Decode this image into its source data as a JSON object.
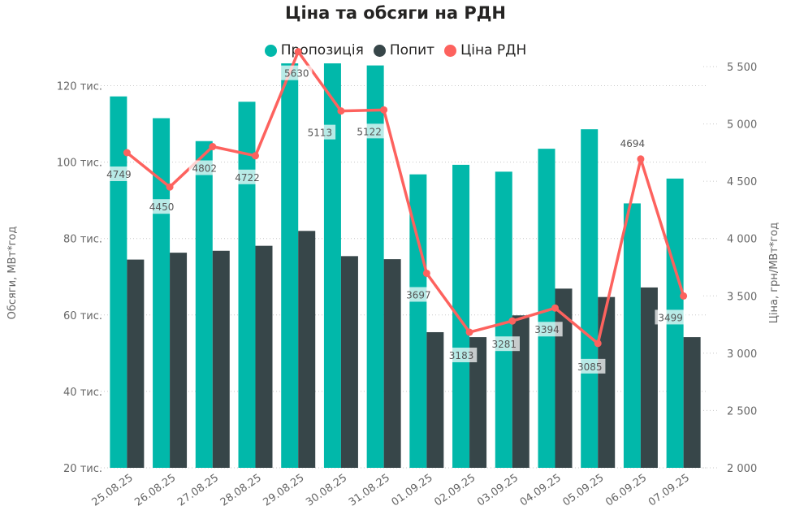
{
  "chart_data": {
    "type": "bar",
    "title": "Ціна та обсяги на РДН",
    "categories": [
      "25.08.25",
      "26.08.25",
      "27.08.25",
      "28.08.25",
      "29.08.25",
      "30.08.25",
      "31.08.25",
      "01.09.25",
      "02.09.25",
      "03.09.25",
      "04.09.25",
      "05.09.25",
      "06.09.25",
      "07.09.25"
    ],
    "series": [
      {
        "name": "Пропозиція",
        "type": "bar",
        "axis": "left",
        "color": "#01B8AA",
        "values": [
          117200,
          111500,
          105500,
          115800,
          132000,
          126000,
          125300,
          96800,
          99300,
          97500,
          103500,
          108600,
          89200,
          95700
        ]
      },
      {
        "name": "Попит",
        "type": "bar",
        "axis": "left",
        "color": "#374649",
        "values": [
          74500,
          76300,
          76800,
          78100,
          82000,
          75400,
          74600,
          55500,
          54200,
          59900,
          66900,
          64700,
          67200,
          54200
        ]
      },
      {
        "name": "Ціна РДН",
        "type": "line",
        "axis": "right",
        "color": "#FD625E",
        "values": [
          4749,
          4450,
          4802,
          4722,
          5630,
          5113,
          5122,
          3697,
          3183,
          3281,
          3394,
          3085,
          4694,
          3499
        ]
      }
    ],
    "y_left": {
      "label": "Обсяги, МВт*год",
      "ylim": [
        20000,
        125000
      ],
      "ticks": [
        20000,
        40000,
        60000,
        80000,
        100000,
        120000
      ],
      "tick_labels": [
        "20 тис.",
        "40 тис.",
        "60 тис.",
        "80 тис.",
        "100 тис.",
        "120 тис."
      ]
    },
    "y_right": {
      "label": "Ціна, грн/МВт*год",
      "ylim": [
        2000,
        5500
      ],
      "ticks": [
        2000,
        2500,
        3000,
        3500,
        4000,
        4500,
        5000,
        5500
      ],
      "tick_labels": [
        "2 000",
        "2 500",
        "3 000",
        "3 500",
        "4 000",
        "4 500",
        "5 000",
        "5 500"
      ]
    },
    "price_labels": [
      "4749",
      "4450",
      "4802",
      "4722",
      "5630",
      "5113",
      "5122",
      "3697",
      "3183",
      "3281",
      "3394",
      "3085",
      "4694",
      "3499"
    ],
    "legend_position": "top-center",
    "grid": "dotted-horizontal"
  },
  "legend": [
    {
      "label": "Пропозиція",
      "color": "#01B8AA"
    },
    {
      "label": "Попит",
      "color": "#374649"
    },
    {
      "label": "Ціна РДН",
      "color": "#FD625E"
    }
  ]
}
